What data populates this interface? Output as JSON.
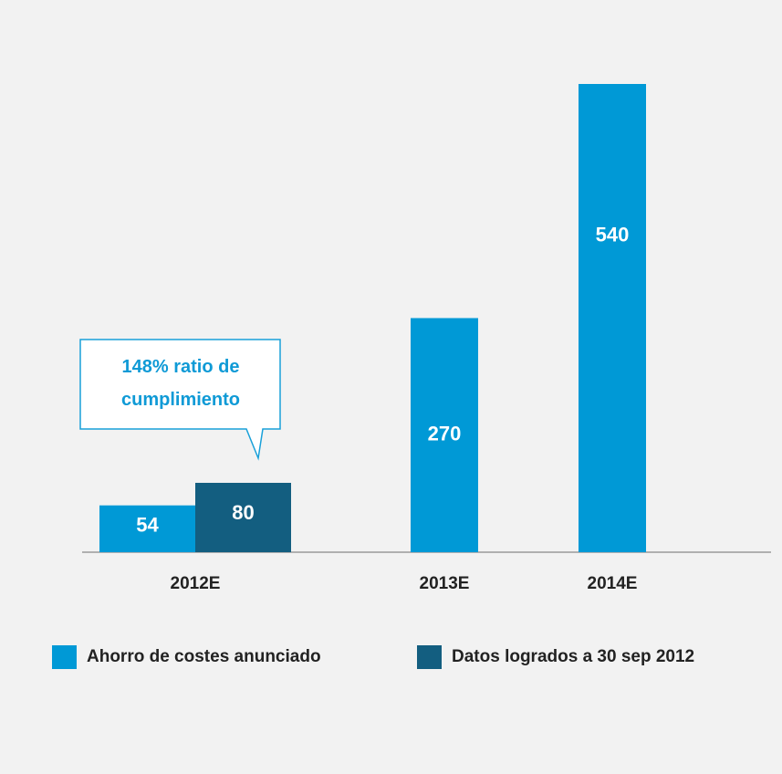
{
  "chart_data": {
    "type": "bar",
    "categories": [
      "2012E",
      "2013E",
      "2014E"
    ],
    "series": [
      {
        "name": "Ahorro de costes anunciado",
        "color": "#0099d6",
        "values": [
          54,
          270,
          540
        ]
      },
      {
        "name": "Datos logrados a 30 sep 2012",
        "color": "#135e80",
        "values": [
          80,
          null,
          null
        ]
      }
    ],
    "annotation": "148% ratio de cumplimiento"
  }
}
